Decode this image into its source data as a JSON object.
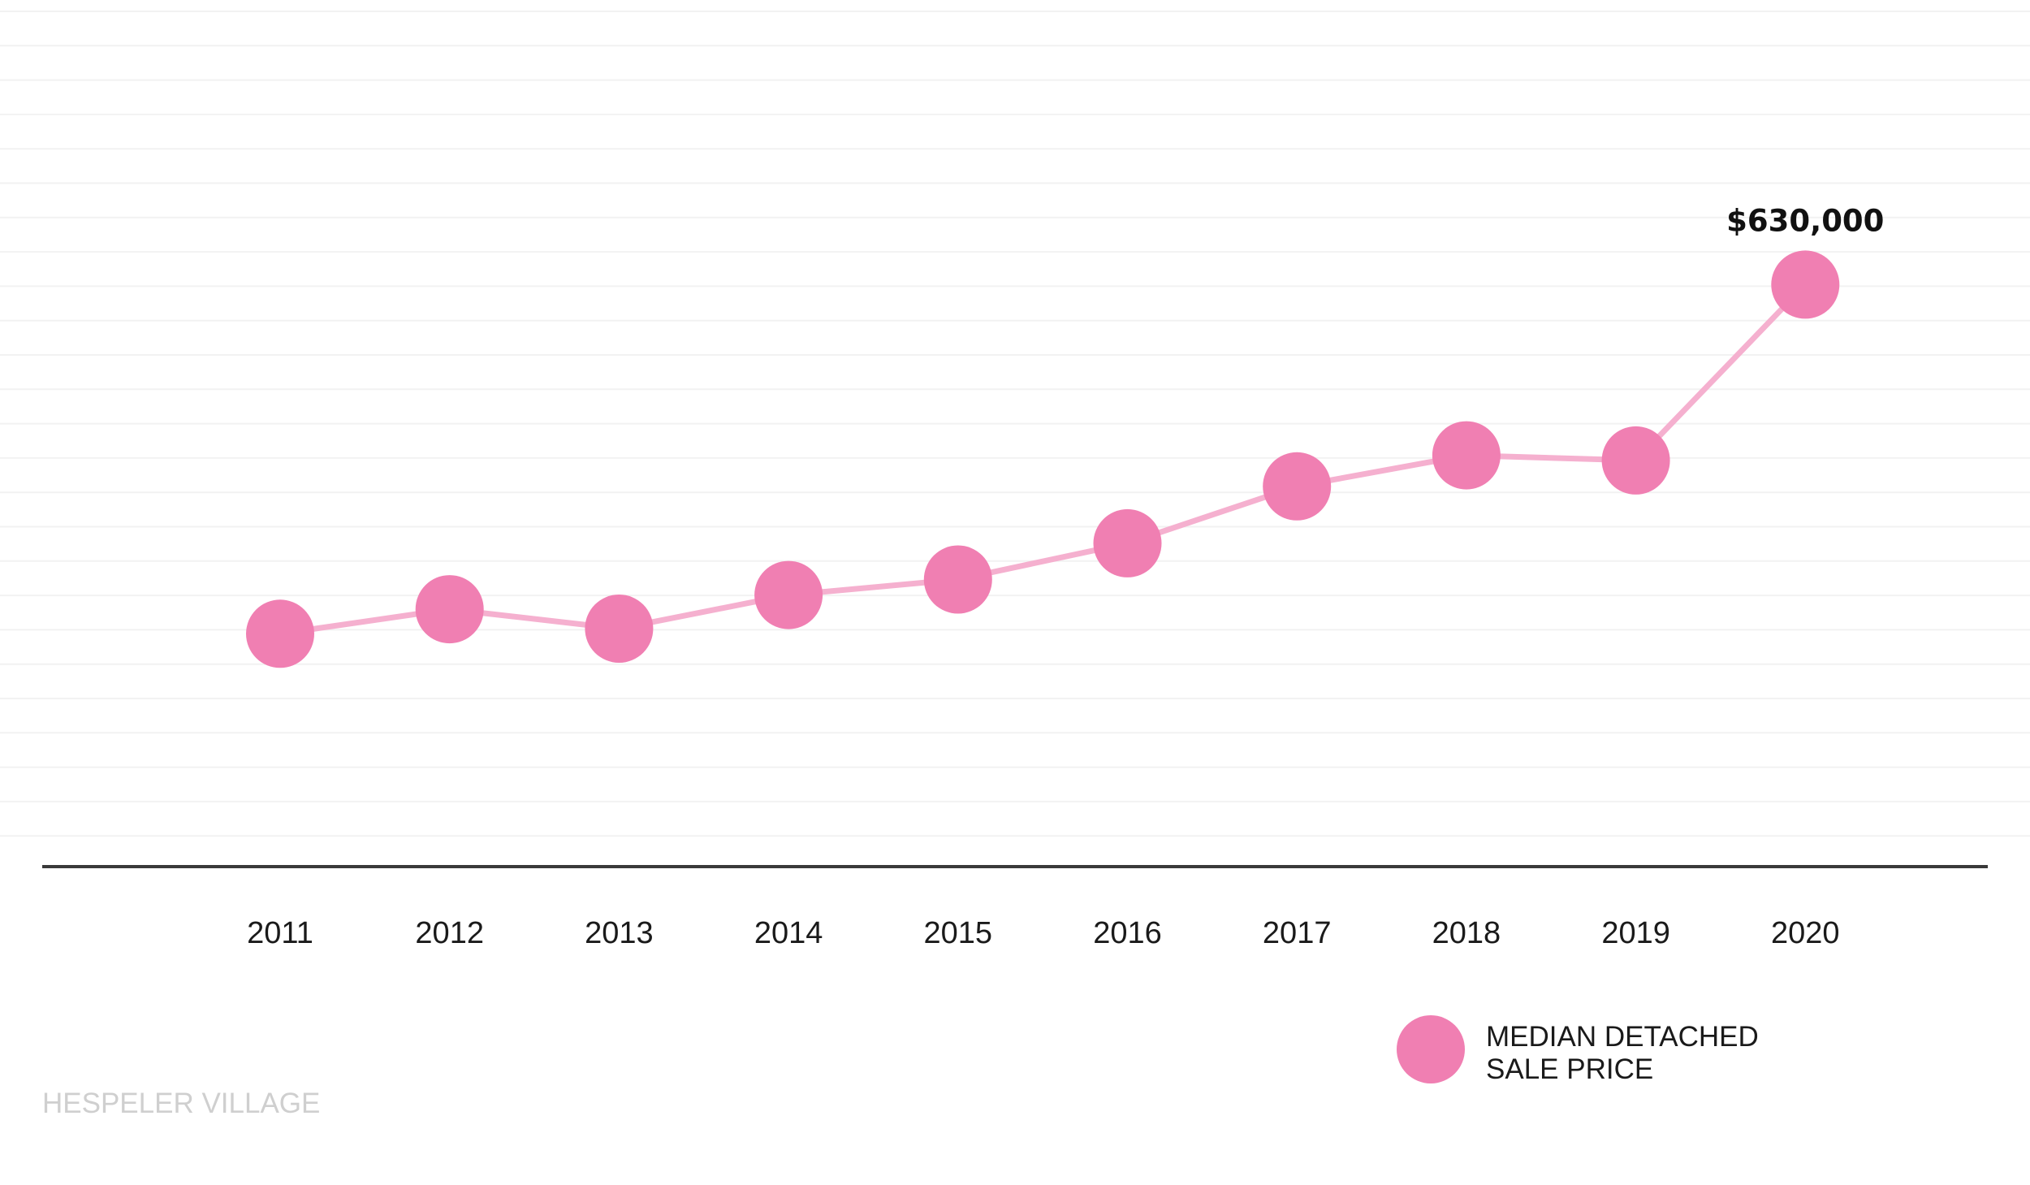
{
  "chart_data": {
    "type": "line",
    "title": "",
    "xlabel": "",
    "ylabel": "",
    "x": [
      "2011",
      "2012",
      "2013",
      "2014",
      "2015",
      "2016",
      "2017",
      "2018",
      "2019",
      "2020"
    ],
    "series": [
      {
        "name": "MEDIAN DETACHED SALE PRICE",
        "values": [
          360000,
          379000,
          364000,
          390000,
          402000,
          430000,
          474000,
          498000,
          494000,
          630000
        ],
        "color": "#f07fb2",
        "line_color": "#f5b0cf"
      }
    ],
    "data_labels": [
      {
        "x": "2020",
        "text": "$630,000"
      }
    ],
    "ylim": [
      180000,
      850000
    ],
    "grid": true,
    "y_ticks_shown": false,
    "legend": {
      "placement": "bottom-right",
      "lines": [
        "MEDIAN DETACHED",
        "SALE PRICE"
      ]
    },
    "annotation": "HESPELER VILLAGE"
  }
}
